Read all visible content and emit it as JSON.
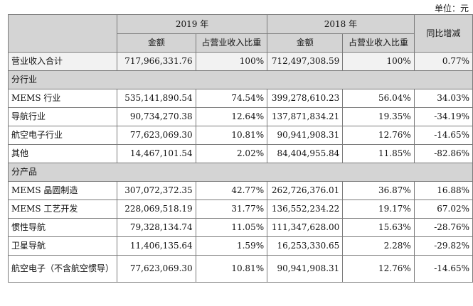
{
  "unit_label": "单位：元",
  "header": {
    "year_2019": "2019 年",
    "year_2018": "2018 年",
    "yoy_change": "同比增减",
    "amount": "金额",
    "share": "占营业收入比重"
  },
  "total_row": {
    "label": "营业收入合计",
    "amount_2019": "717,966,331.76",
    "share_2019": "100%",
    "amount_2018": "712,497,308.59",
    "share_2018": "100%",
    "yoy": "0.77%"
  },
  "sections": [
    {
      "title": "分行业",
      "rows": [
        {
          "label": "MEMS 行业",
          "amount_2019": "535,141,890.54",
          "share_2019": "74.54%",
          "amount_2018": "399,278,610.23",
          "share_2018": "56.04%",
          "yoy": "34.03%"
        },
        {
          "label": "导航行业",
          "amount_2019": "90,734,270.38",
          "share_2019": "12.64%",
          "amount_2018": "137,871,834.21",
          "share_2018": "19.35%",
          "yoy": "-34.19%"
        },
        {
          "label": "航空电子行业",
          "amount_2019": "77,623,069.30",
          "share_2019": "10.81%",
          "amount_2018": "90,941,908.31",
          "share_2018": "12.76%",
          "yoy": "-14.65%"
        },
        {
          "label": "其他",
          "amount_2019": "14,467,101.54",
          "share_2019": "2.02%",
          "amount_2018": "84,404,955.84",
          "share_2018": "11.85%",
          "yoy": "-82.86%"
        }
      ]
    },
    {
      "title": "分产品",
      "rows": [
        {
          "label": "MEMS 晶圆制造",
          "amount_2019": "307,072,372.35",
          "share_2019": "42.77%",
          "amount_2018": "262,726,376.01",
          "share_2018": "36.87%",
          "yoy": "16.88%"
        },
        {
          "label": "MEMS 工艺开发",
          "amount_2019": "228,069,518.19",
          "share_2019": "31.77%",
          "amount_2018": "136,552,234.22",
          "share_2018": "19.17%",
          "yoy": "67.02%"
        },
        {
          "label": "惯性导航",
          "amount_2019": "79,328,134.74",
          "share_2019": "11.05%",
          "amount_2018": "111,347,628.00",
          "share_2018": "15.63%",
          "yoy": "-28.76%"
        },
        {
          "label": "卫星导航",
          "amount_2019": "11,406,135.64",
          "share_2019": "1.59%",
          "amount_2018": "16,253,330.65",
          "share_2018": "2.28%",
          "yoy": "-29.82%"
        },
        {
          "label": "航空电子（不含航空惯导）",
          "amount_2019": "77,623,069.30",
          "share_2019": "10.81%",
          "amount_2018": "90,941,908.31",
          "share_2018": "12.76%",
          "yoy": "-14.65%"
        }
      ]
    }
  ]
}
